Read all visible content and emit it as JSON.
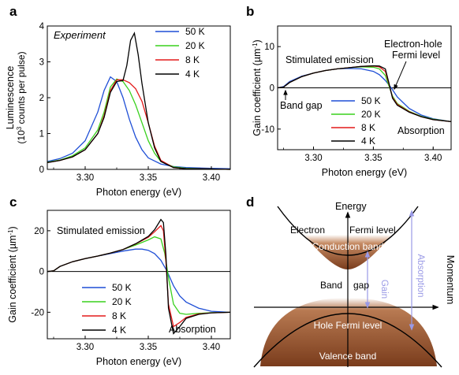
{
  "colors": {
    "50K": "#1f4fd6",
    "20K": "#39d11d",
    "8K": "#e31a1a",
    "4K": "#000000",
    "band_brown": "#8a4a26",
    "arrow": "#9a9ae6"
  },
  "panels": {
    "a": {
      "letter": "a",
      "annotation": "Experiment"
    },
    "b": {
      "letter": "b",
      "annotations": {
        "stim": "Stimulated emission",
        "fermi1": "Electron-hole",
        "fermi2": "Fermi level",
        "bandgap": "Band gap",
        "absorption": "Absorption"
      }
    },
    "c": {
      "letter": "c",
      "annotations": {
        "stim": "Stimulated emission",
        "absorption": "Absorption"
      }
    },
    "d": {
      "letter": "d",
      "labels": {
        "energy": "Energy",
        "momentum": "Momentum",
        "electron": "Electron",
        "fermi": "Fermi level",
        "conduction": "Conduction band",
        "band": "Band",
        "gap": "gap",
        "gain": "Gain",
        "absorption": "Absorption",
        "hole": "Hole Fermi level",
        "valence": "Valence band"
      }
    }
  },
  "chart_data": [
    {
      "type": "line",
      "panel": "a",
      "xlabel": "Photon energy (eV)",
      "ylabel": "Luminescence",
      "ylabel2": "(10",
      "ylabel2_sup": "3",
      "ylabel2_rest": " counts per pulse)",
      "xlim": [
        3.27,
        3.415
      ],
      "ylim": [
        0,
        4
      ],
      "xticks": [
        "3.30",
        "3.35",
        "3.40"
      ],
      "xtick_values": [
        3.3,
        3.35,
        3.4
      ],
      "yticks": [
        "0",
        "1",
        "2",
        "3",
        "4"
      ],
      "ytick_values": [
        0,
        1,
        2,
        3,
        4
      ],
      "legend": [
        "50 K",
        "20 K",
        "8 K",
        "4 K"
      ],
      "series": [
        {
          "name": "50 K",
          "x": [
            3.27,
            3.28,
            3.29,
            3.3,
            3.31,
            3.315,
            3.32,
            3.325,
            3.33,
            3.335,
            3.34,
            3.345,
            3.35,
            3.36,
            3.37,
            3.38,
            3.39,
            3.4,
            3.415
          ],
          "y": [
            0.22,
            0.3,
            0.45,
            0.8,
            1.6,
            2.2,
            2.58,
            2.45,
            2.0,
            1.4,
            0.9,
            0.55,
            0.32,
            0.15,
            0.08,
            0.05,
            0.04,
            0.03,
            0.02
          ]
        },
        {
          "name": "20 K",
          "x": [
            3.27,
            3.28,
            3.29,
            3.3,
            3.31,
            3.315,
            3.32,
            3.325,
            3.33,
            3.335,
            3.34,
            3.345,
            3.35,
            3.355,
            3.36,
            3.37,
            3.38,
            3.4,
            3.415
          ],
          "y": [
            0.2,
            0.26,
            0.38,
            0.6,
            1.1,
            1.6,
            2.3,
            2.52,
            2.45,
            2.2,
            1.8,
            1.3,
            0.8,
            0.45,
            0.22,
            0.07,
            0.03,
            0.01,
            0.0
          ]
        },
        {
          "name": "8 K",
          "x": [
            3.27,
            3.28,
            3.29,
            3.3,
            3.31,
            3.315,
            3.32,
            3.325,
            3.33,
            3.335,
            3.34,
            3.345,
            3.35,
            3.355,
            3.36,
            3.37,
            3.38,
            3.4,
            3.415
          ],
          "y": [
            0.19,
            0.25,
            0.35,
            0.55,
            1.0,
            1.5,
            2.2,
            2.5,
            2.5,
            2.42,
            2.25,
            1.9,
            1.3,
            0.65,
            0.25,
            0.05,
            0.02,
            0.01,
            0.0
          ]
        },
        {
          "name": "4 K",
          "x": [
            3.27,
            3.28,
            3.29,
            3.3,
            3.31,
            3.315,
            3.32,
            3.325,
            3.33,
            3.333,
            3.336,
            3.339,
            3.342,
            3.345,
            3.35,
            3.355,
            3.36,
            3.37,
            3.38,
            3.4,
            3.415
          ],
          "y": [
            0.19,
            0.25,
            0.35,
            0.55,
            1.0,
            1.45,
            2.15,
            2.45,
            2.48,
            2.9,
            3.6,
            3.8,
            3.2,
            2.4,
            1.3,
            0.6,
            0.22,
            0.05,
            0.02,
            0.01,
            0.0
          ]
        }
      ]
    },
    {
      "type": "line",
      "panel": "b",
      "xlabel": "Photon energy (eV)",
      "ylabel": "Gain coefficient (µm",
      "ylabel_sup": "-1",
      "ylabel_rest": ")",
      "xlim": [
        3.27,
        3.415
      ],
      "ylim": [
        -15,
        15
      ],
      "xticks": [
        "3.30",
        "3.35",
        "3.40"
      ],
      "xtick_values": [
        3.3,
        3.35,
        3.4
      ],
      "yticks": [
        "-10",
        "0",
        "10"
      ],
      "ytick_values": [
        -10,
        0,
        10
      ],
      "legend": [
        "50 K",
        "20 K",
        "8 K",
        "4 K"
      ],
      "series": [
        {
          "name": "50 K",
          "x": [
            3.27,
            3.275,
            3.28,
            3.29,
            3.3,
            3.31,
            3.32,
            3.33,
            3.34,
            3.35,
            3.355,
            3.36,
            3.365,
            3.37,
            3.38,
            3.39,
            3.4,
            3.415
          ],
          "y": [
            0,
            0.3,
            1.5,
            2.8,
            3.6,
            4.2,
            4.6,
            4.7,
            4.6,
            4.0,
            3.2,
            1.8,
            0,
            -2.2,
            -5.0,
            -6.6,
            -7.5,
            -8.2
          ]
        },
        {
          "name": "20 K",
          "x": [
            3.27,
            3.275,
            3.28,
            3.29,
            3.3,
            3.31,
            3.32,
            3.33,
            3.34,
            3.35,
            3.355,
            3.36,
            3.363,
            3.366,
            3.37,
            3.38,
            3.39,
            3.4,
            3.415
          ],
          "y": [
            0,
            0.2,
            1.3,
            2.7,
            3.6,
            4.2,
            4.6,
            4.9,
            5.1,
            5.0,
            4.6,
            3.0,
            0.5,
            -2.0,
            -3.8,
            -5.7,
            -6.9,
            -7.6,
            -8.2
          ]
        },
        {
          "name": "8 K",
          "x": [
            3.27,
            3.275,
            3.28,
            3.29,
            3.3,
            3.31,
            3.32,
            3.33,
            3.34,
            3.35,
            3.355,
            3.36,
            3.363,
            3.366,
            3.37,
            3.38,
            3.39,
            3.4,
            3.415
          ],
          "y": [
            0,
            0.2,
            1.3,
            2.7,
            3.6,
            4.2,
            4.6,
            4.9,
            5.2,
            5.3,
            5.1,
            4.0,
            1.0,
            -2.3,
            -4.0,
            -5.8,
            -7.0,
            -7.7,
            -8.2
          ]
        },
        {
          "name": "4 K",
          "x": [
            3.27,
            3.275,
            3.28,
            3.29,
            3.3,
            3.31,
            3.32,
            3.33,
            3.34,
            3.35,
            3.355,
            3.36,
            3.363,
            3.366,
            3.37,
            3.38,
            3.39,
            3.4,
            3.415
          ],
          "y": [
            0,
            0.2,
            1.3,
            2.7,
            3.6,
            4.2,
            4.6,
            4.9,
            5.2,
            5.35,
            5.3,
            4.6,
            1.2,
            -2.5,
            -4.2,
            -5.9,
            -7.0,
            -7.7,
            -8.2
          ]
        }
      ]
    },
    {
      "type": "line",
      "panel": "c",
      "xlabel": "Photon energy (eV)",
      "ylabel": "Gain coefficient (µm",
      "ylabel_sup": "-1",
      "ylabel_rest": ")",
      "xlim": [
        3.27,
        3.415
      ],
      "ylim": [
        -33,
        30
      ],
      "xticks": [
        "3.30",
        "3.35",
        "3.40"
      ],
      "xtick_values": [
        3.3,
        3.35,
        3.4
      ],
      "yticks": [
        "-20",
        "0",
        "20"
      ],
      "ytick_values": [
        -20,
        0,
        20
      ],
      "legend": [
        "50 K",
        "20 K",
        "8 K",
        "4 K"
      ],
      "series": [
        {
          "name": "50 K",
          "x": [
            3.27,
            3.275,
            3.28,
            3.29,
            3.3,
            3.31,
            3.32,
            3.33,
            3.34,
            3.345,
            3.35,
            3.355,
            3.36,
            3.365,
            3.37,
            3.375,
            3.38,
            3.39,
            3.4,
            3.415
          ],
          "y": [
            0,
            0.3,
            2.5,
            4.8,
            6.3,
            7.6,
            8.8,
            10.0,
            11.0,
            11.0,
            10.4,
            8.8,
            5.5,
            0,
            -7.0,
            -12.0,
            -15.0,
            -18.0,
            -19.5,
            -20.0
          ]
        },
        {
          "name": "20 K",
          "x": [
            3.27,
            3.275,
            3.28,
            3.29,
            3.3,
            3.31,
            3.32,
            3.33,
            3.34,
            3.35,
            3.355,
            3.36,
            3.363,
            3.366,
            3.37,
            3.375,
            3.38,
            3.39,
            3.4,
            3.415
          ],
          "y": [
            0,
            0.3,
            2.5,
            4.8,
            6.3,
            7.6,
            9.0,
            10.8,
            13.0,
            15.5,
            17.0,
            16.0,
            9.0,
            -3.0,
            -16.0,
            -20.5,
            -21.0,
            -20.5,
            -20.2,
            -20.0
          ]
        },
        {
          "name": "8 K",
          "x": [
            3.27,
            3.275,
            3.28,
            3.29,
            3.3,
            3.31,
            3.32,
            3.33,
            3.34,
            3.35,
            3.355,
            3.36,
            3.362,
            3.364,
            3.366,
            3.37,
            3.375,
            3.38,
            3.39,
            3.4,
            3.415
          ],
          "y": [
            0,
            0.3,
            2.5,
            4.8,
            6.3,
            7.6,
            9.0,
            10.8,
            13.5,
            16.8,
            19.5,
            22.5,
            20.0,
            5.0,
            -16.0,
            -27.0,
            -25.0,
            -22.5,
            -20.8,
            -20.3,
            -20.0
          ]
        },
        {
          "name": "4 K",
          "x": [
            3.27,
            3.275,
            3.28,
            3.29,
            3.3,
            3.31,
            3.32,
            3.33,
            3.34,
            3.35,
            3.355,
            3.36,
            3.362,
            3.364,
            3.366,
            3.37,
            3.375,
            3.38,
            3.39,
            3.4,
            3.415
          ],
          "y": [
            0,
            0.3,
            2.5,
            4.8,
            6.3,
            7.6,
            9.0,
            10.8,
            13.6,
            17.2,
            20.5,
            25.5,
            24.0,
            8.0,
            -18.0,
            -30.5,
            -27.0,
            -23.0,
            -21.0,
            -20.3,
            -20.0
          ]
        }
      ]
    }
  ]
}
